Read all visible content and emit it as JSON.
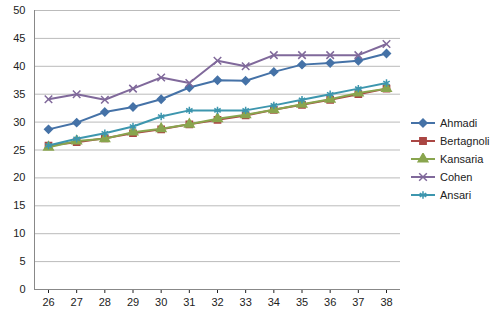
{
  "chart_data": {
    "type": "line",
    "x": [
      26,
      27,
      28,
      29,
      30,
      31,
      32,
      33,
      34,
      35,
      36,
      37,
      38
    ],
    "xlim": [
      26,
      38
    ],
    "xticks": [
      26,
      27,
      28,
      29,
      30,
      31,
      32,
      33,
      34,
      35,
      36,
      37,
      38
    ],
    "ylim": [
      0,
      50
    ],
    "yticks": [
      0,
      5,
      10,
      15,
      20,
      25,
      30,
      35,
      40,
      45,
      50
    ],
    "grid": true,
    "legend": "right",
    "series": [
      {
        "name": "Ahmadi",
        "color": "#4572a7",
        "marker": "diamond",
        "values": [
          28.7,
          29.9,
          31.8,
          32.7,
          34.1,
          36.2,
          37.5,
          37.4,
          39.0,
          40.3,
          40.6,
          41.0,
          42.3
        ]
      },
      {
        "name": "Bertagnoli",
        "color": "#aa4643",
        "marker": "square",
        "values": [
          25.8,
          26.4,
          27.1,
          28.0,
          28.7,
          29.6,
          30.4,
          31.2,
          32.2,
          33.1,
          34.0,
          35.0,
          36.0
        ]
      },
      {
        "name": "Kansaria",
        "color": "#89a54e",
        "marker": "triangle",
        "values": [
          25.5,
          26.6,
          27.0,
          28.2,
          28.8,
          29.6,
          30.6,
          31.3,
          32.2,
          33.2,
          34.1,
          35.2,
          36.0
        ]
      },
      {
        "name": "Cohen",
        "color": "#80699b",
        "marker": "x",
        "values": [
          34.1,
          35.0,
          34.0,
          36.0,
          38.0,
          37.0,
          41.0,
          40.0,
          42.0,
          42.0,
          42.0,
          42.0,
          44.0
        ]
      },
      {
        "name": "Ansari",
        "color": "#3d96ae",
        "marker": "star",
        "values": [
          25.8,
          27.0,
          28.0,
          29.2,
          31.0,
          32.1,
          32.1,
          32.1,
          33.0,
          34.0,
          35.0,
          36.0,
          37.0
        ]
      }
    ]
  }
}
